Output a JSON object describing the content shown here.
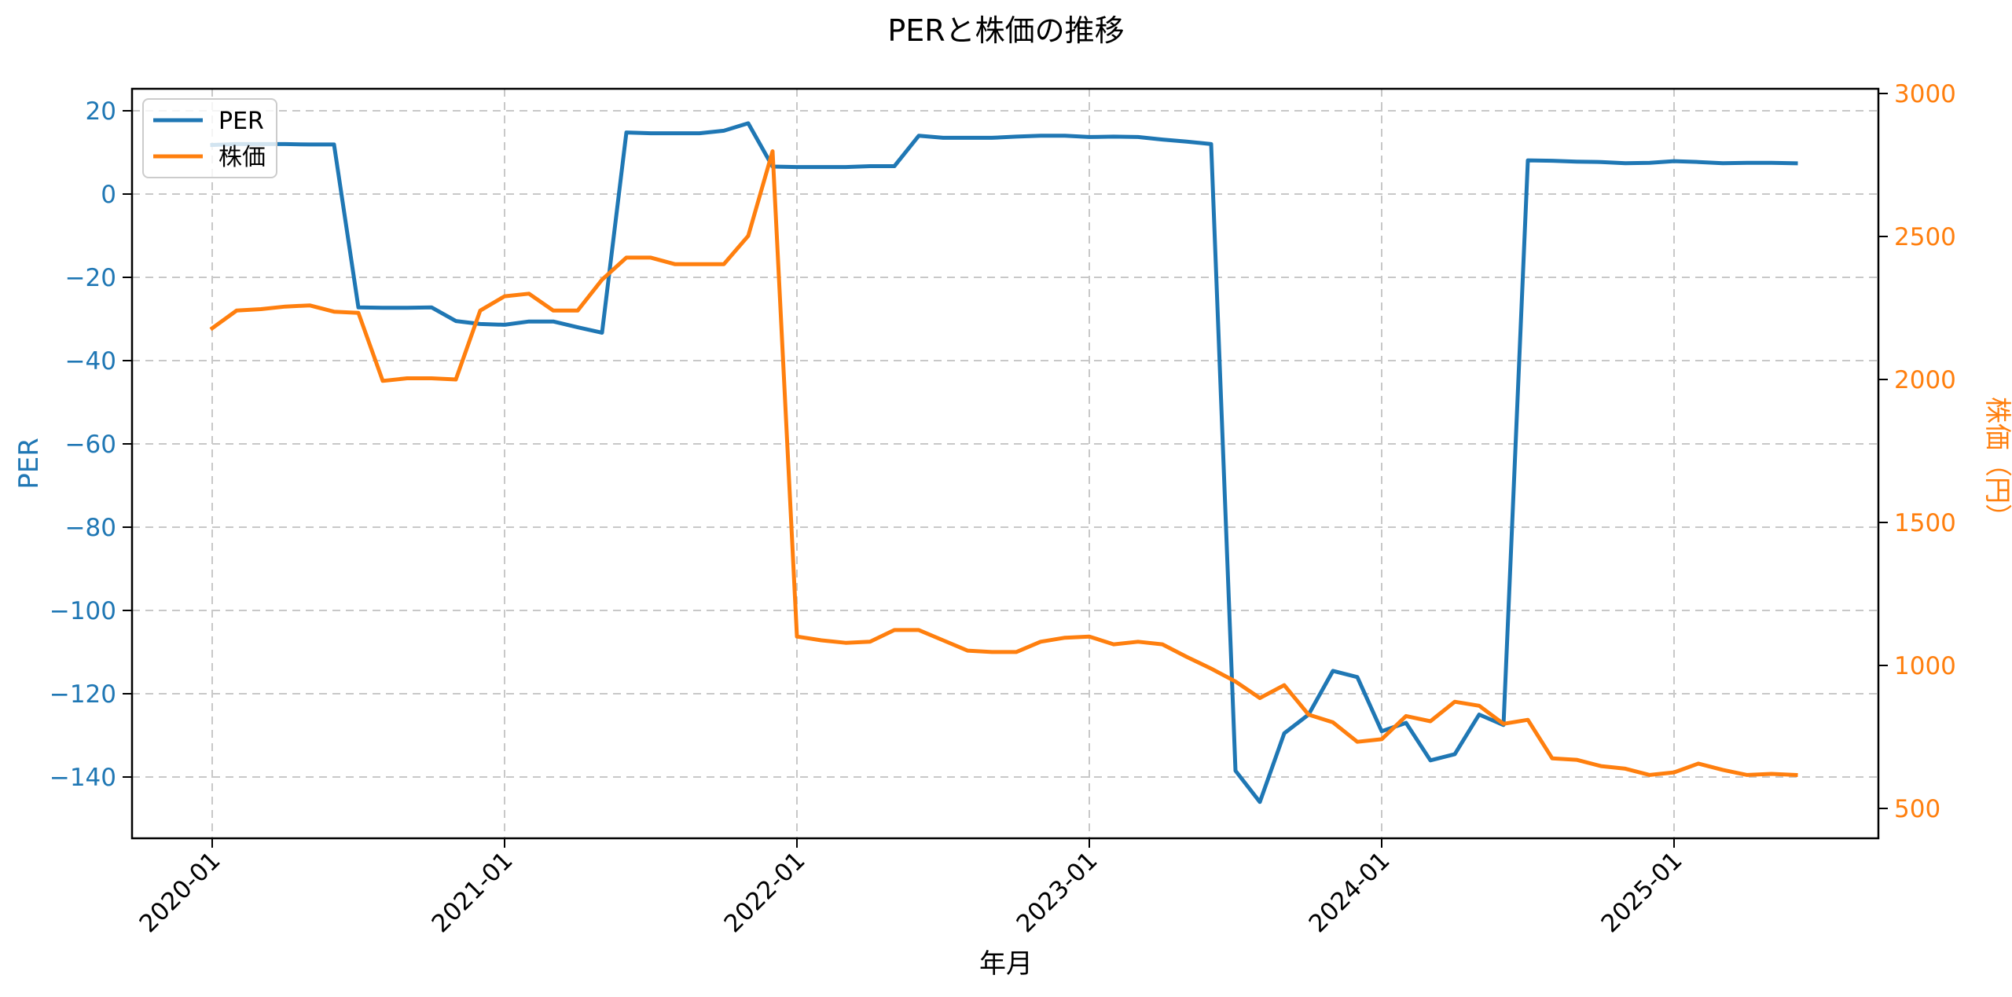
{
  "chart_data": {
    "type": "line",
    "title": "PERと株価の推移",
    "xlabel": "年月",
    "ylabel": "PER",
    "ylabel_right": "株価（円）",
    "grid": true,
    "legend_position": "upper left",
    "x_ticks": [
      "2020-01",
      "2021-01",
      "2022-01",
      "2023-01",
      "2024-01",
      "2025-01"
    ],
    "y_ticks_left": [
      20,
      0,
      -20,
      -40,
      -60,
      -80,
      -100,
      -120,
      -140
    ],
    "y_ticks_right": [
      3000,
      2500,
      2000,
      1500,
      1000,
      500
    ],
    "ylim_left": [
      -155,
      25
    ],
    "ylim_right": [
      400,
      3015
    ],
    "x": [
      "2020-01",
      "2020-02",
      "2020-03",
      "2020-04",
      "2020-05",
      "2020-06",
      "2020-07",
      "2020-08",
      "2020-09",
      "2020-10",
      "2020-11",
      "2020-12",
      "2021-01",
      "2021-02",
      "2021-03",
      "2021-04",
      "2021-05",
      "2021-06",
      "2021-07",
      "2021-08",
      "2021-09",
      "2021-10",
      "2021-11",
      "2021-12",
      "2022-01",
      "2022-02",
      "2022-03",
      "2022-04",
      "2022-05",
      "2022-06",
      "2022-07",
      "2022-08",
      "2022-09",
      "2022-10",
      "2022-11",
      "2022-12",
      "2023-01",
      "2023-02",
      "2023-03",
      "2023-04",
      "2023-05",
      "2023-06",
      "2023-07",
      "2023-08",
      "2023-09",
      "2023-10",
      "2023-11",
      "2023-12",
      "2024-01",
      "2024-02",
      "2024-03",
      "2024-04",
      "2024-05",
      "2024-06",
      "2024-07",
      "2024-08",
      "2024-09",
      "2024-10",
      "2024-11",
      "2024-12",
      "2025-01",
      "2025-02",
      "2025-03",
      "2025-04",
      "2025-05",
      "2025-06"
    ],
    "series": [
      {
        "name": "PER",
        "axis": "left",
        "color": "#1f77b4",
        "values": [
          11.8,
          12.0,
          12.0,
          12.0,
          11.9,
          11.9,
          -27.2,
          -27.3,
          -27.3,
          -27.2,
          -30.5,
          -31.2,
          -31.4,
          -30.6,
          -30.6,
          -32.0,
          -33.3,
          14.8,
          14.6,
          14.6,
          14.6,
          15.2,
          17.0,
          6.6,
          6.5,
          6.5,
          6.5,
          6.7,
          6.7,
          14.0,
          13.5,
          13.5,
          13.5,
          13.8,
          14.0,
          14.0,
          13.7,
          13.8,
          13.7,
          13.1,
          12.6,
          12.0,
          -138.5,
          -146.0,
          -129.5,
          -125.0,
          -114.5,
          -116.0,
          -129.0,
          -127.0,
          -136.0,
          -134.5,
          -125.0,
          -127.5,
          8.1,
          8.0,
          7.8,
          7.7,
          7.4,
          7.5,
          7.9,
          7.7,
          7.4,
          7.5,
          7.5,
          7.4
        ]
      },
      {
        "name": "株価",
        "axis": "right",
        "color": "#ff7f0e",
        "values": [
          2179,
          2241,
          2246,
          2255,
          2259,
          2237,
          2233,
          1995,
          2004,
          2004,
          2000,
          2241,
          2291,
          2300,
          2241,
          2241,
          2349,
          2426,
          2426,
          2403,
          2403,
          2403,
          2502,
          2798,
          1101,
          1088,
          1079,
          1083,
          1124,
          1124,
          1088,
          1052,
          1047,
          1047,
          1083,
          1097,
          1101,
          1074,
          1083,
          1074,
          1030,
          989,
          944,
          886,
          931,
          828,
          801,
          733,
          742,
          823,
          805,
          873,
          859,
          796,
          810,
          675,
          670,
          648,
          639,
          617,
          626,
          657,
          635,
          617,
          621,
          617
        ]
      }
    ]
  },
  "legend": {
    "items": [
      {
        "label": "PER",
        "color": "#1f77b4"
      },
      {
        "label": "株価",
        "color": "#ff7f0e"
      }
    ]
  }
}
